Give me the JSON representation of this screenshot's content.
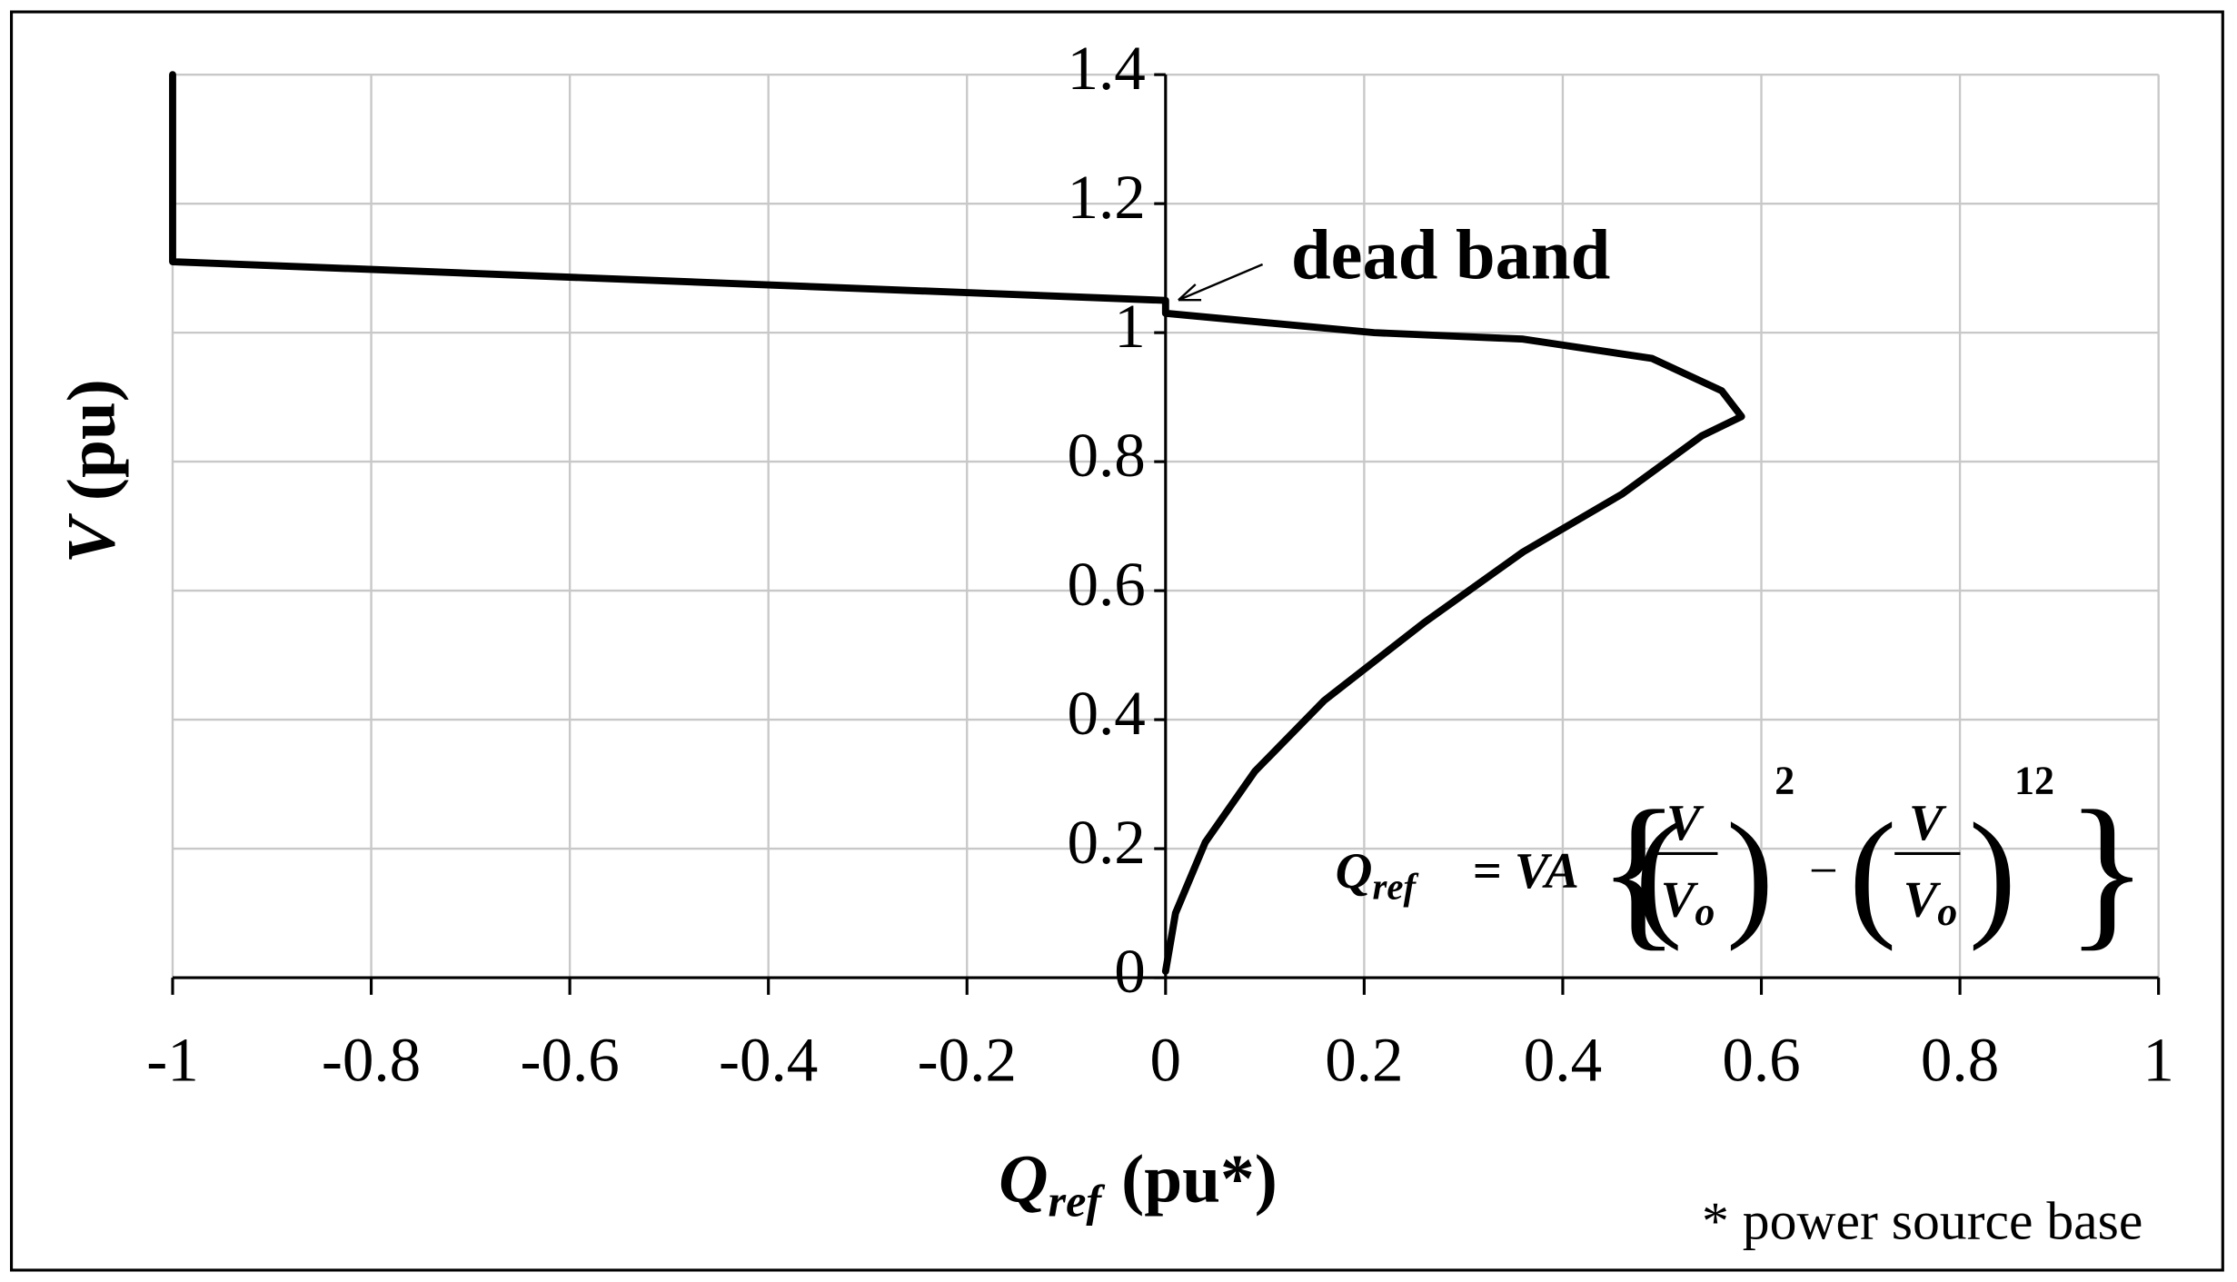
{
  "chart_data": {
    "type": "line",
    "x_label": {
      "symbol": "Q",
      "subscript": "ref",
      "unit": "(pu*)"
    },
    "y_label": {
      "symbol": "V",
      "unit": "(pu)"
    },
    "x": [
      0,
      0.01,
      0.04,
      0.09,
      0.16,
      0.26,
      0.36,
      0.46,
      0.54,
      0.58,
      0.56,
      0.49,
      0.36,
      0.21,
      0,
      0,
      -1,
      -1
    ],
    "series": [
      {
        "color": "#000000",
        "values": [
          0.01,
          0.1,
          0.21,
          0.32,
          0.43,
          0.55,
          0.66,
          0.75,
          0.84,
          0.87,
          0.91,
          0.96,
          0.99,
          1.0,
          1.03,
          1.05,
          1.11,
          1.4
        ]
      }
    ],
    "xlim": [
      -1,
      1
    ],
    "xticks": [
      -1,
      -0.8,
      -0.6,
      -0.4,
      -0.2,
      0,
      0.2,
      0.4,
      0.6,
      0.8,
      1
    ],
    "ylim": [
      0,
      1.4
    ],
    "yticks": [
      0,
      0.2,
      0.4,
      0.6,
      0.8,
      1,
      1.2,
      1.4
    ],
    "grid": true,
    "annotation": "dead band",
    "note": "* power source base",
    "formula": {
      "lhs": "Q",
      "lhs_subscript": "ref",
      "equals": "= VA",
      "numerator": "V",
      "denominator": "V",
      "denominator_subscript": "o",
      "exponent_1": "2",
      "minus": "−",
      "exponent_2": "12"
    }
  }
}
